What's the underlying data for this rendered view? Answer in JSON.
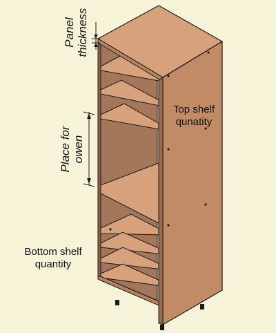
{
  "labels": {
    "panel_thickness": [
      "Panel",
      "thickness"
    ],
    "place_for_oven": [
      "Place for",
      "owen"
    ],
    "top_shelf": [
      "Top shelf",
      "qunatity"
    ],
    "bottom_shelf": [
      "Bottom shelf",
      "quantity"
    ]
  },
  "colors": {
    "background": "#F6F3D9",
    "wood_top": "#D6A17B",
    "wood_side": "#C18B66",
    "wood_interior": "#A4765A",
    "edge": "#1A1A1A"
  }
}
